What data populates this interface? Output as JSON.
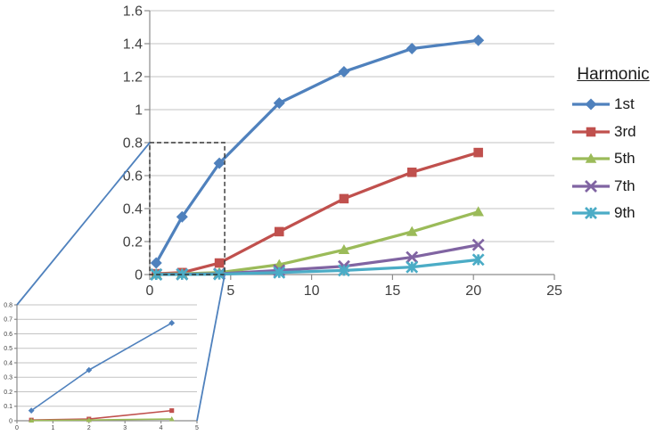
{
  "page": {
    "background": "#ffffff"
  },
  "legend": {
    "title": "Harmonic"
  },
  "colors": {
    "gridline": "#c3c3c3",
    "axis": "#8c8c8c",
    "tick_text": "#3f3f3f",
    "callout_rect": "#333333",
    "callout_connector": "#4f81bd"
  },
  "chart_data": [
    {
      "id": "main",
      "type": "line",
      "title": "",
      "xlabel": "",
      "ylabel": "",
      "xlim": [
        0,
        25
      ],
      "xstep": 5,
      "ylim": [
        0,
        1.6
      ],
      "ystep": 0.2,
      "grid": true,
      "legend_position": "right",
      "x": [
        0.4,
        2,
        4.3,
        8,
        12,
        16.2,
        20.3
      ],
      "series": [
        {
          "name": "1st",
          "color": "#4f81bd",
          "marker": "diamond",
          "values": [
            0.07,
            0.35,
            0.675,
            1.04,
            1.23,
            1.37,
            1.42
          ]
        },
        {
          "name": "3rd",
          "color": "#c0504d",
          "marker": "square",
          "values": [
            0.005,
            0.012,
            0.07,
            0.26,
            0.46,
            0.62,
            0.74
          ]
        },
        {
          "name": "5th",
          "color": "#9bbb59",
          "marker": "triangle",
          "values": [
            0.002,
            0.005,
            0.012,
            0.06,
            0.15,
            0.26,
            0.38
          ]
        },
        {
          "name": "7th",
          "color": "#8064a2",
          "marker": "x",
          "values": [
            0.001,
            0.002,
            0.005,
            0.025,
            0.05,
            0.105,
            0.18
          ]
        },
        {
          "name": "9th",
          "color": "#4bacc6",
          "marker": "asterisk",
          "values": [
            0,
            0.001,
            0.002,
            0.012,
            0.025,
            0.045,
            0.09
          ]
        }
      ]
    },
    {
      "id": "inset-zoom",
      "type": "line",
      "title": "",
      "xlabel": "",
      "ylabel": "",
      "xlim": [
        0,
        5
      ],
      "xstep": 1,
      "ylim": [
        0,
        0.8
      ],
      "ystep": 0.1,
      "grid": true,
      "legend_position": "none",
      "x": [
        0.4,
        2,
        4.3
      ],
      "series": [
        {
          "name": "1st",
          "color": "#4f81bd",
          "marker": "diamond",
          "values": [
            0.07,
            0.35,
            0.675
          ]
        },
        {
          "name": "3rd",
          "color": "#c0504d",
          "marker": "square",
          "values": [
            0.005,
            0.012,
            0.07
          ]
        },
        {
          "name": "5th",
          "color": "#9bbb59",
          "marker": "triangle",
          "values": [
            0.002,
            0.005,
            0.012
          ]
        }
      ]
    }
  ],
  "callout": {
    "region_x": [
      0,
      4.63
    ],
    "region_y": [
      0,
      0.8
    ]
  }
}
